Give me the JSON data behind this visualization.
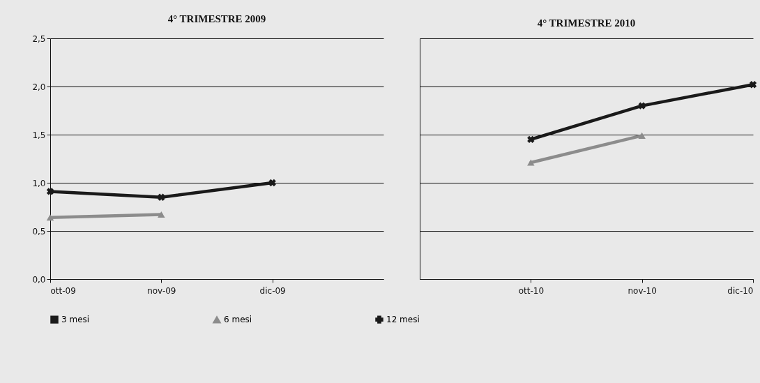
{
  "chart_data": [
    {
      "type": "line",
      "title": "4° TRIMESTRE 2009",
      "categories": [
        "ott-09",
        "nov-09",
        "dic-09"
      ],
      "ylim": [
        0,
        2.5
      ],
      "yticks": [
        {
          "value": 0,
          "label": "0,0"
        },
        {
          "value": 0.5,
          "label": "0,5"
        },
        {
          "value": 1,
          "label": "1,0"
        },
        {
          "value": 1.5,
          "label": "1,5"
        },
        {
          "value": 2,
          "label": "2,0"
        },
        {
          "value": 2.5,
          "label": "2,5"
        }
      ],
      "grid": "y",
      "legend": "bottom",
      "series": [
        {
          "name": "3  mesi",
          "color": "#1a1a1a",
          "marker": "square",
          "values": [
            null,
            null,
            null
          ]
        },
        {
          "name": "6  mesi",
          "color": "#8c8c8c",
          "marker": "triangle",
          "values": [
            0.64,
            0.67,
            null
          ]
        },
        {
          "name": "12 mesi",
          "color": "#1a1a1a",
          "marker": "cross",
          "values": [
            0.91,
            0.85,
            1.0
          ]
        }
      ]
    },
    {
      "type": "line",
      "title": "4° TRIMESTRE 2010",
      "categories": [
        "ott-10",
        "nov-10",
        "dic-10"
      ],
      "ylim": [
        0,
        2.5
      ],
      "yticks": [
        0,
        0.5,
        1,
        1.5,
        2,
        2.5
      ],
      "tick_labels": "x",
      "grid": "y",
      "series": [
        {
          "color": "#8c8c8c",
          "marker": "triangle",
          "values": [
            1.21,
            1.49,
            null
          ]
        },
        {
          "color": "#1a1a1a",
          "marker": "cross",
          "values": [
            1.45,
            1.8,
            2.02
          ]
        }
      ]
    }
  ]
}
